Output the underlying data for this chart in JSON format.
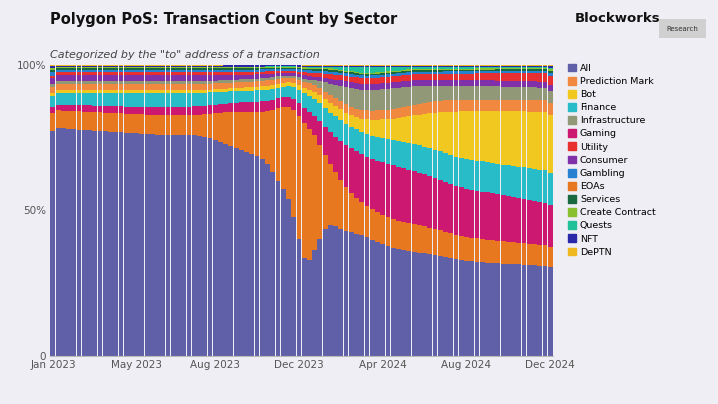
{
  "title": "Polygon PoS: Transaction Count by Sector",
  "subtitle": "Categorized by the \"to\" address of a transaction",
  "background_color": "#eeeef4",
  "plot_bg_color": "#eeeef4",
  "xtick_labels": [
    "Jan 2023",
    "May 2023",
    "Aug 2023",
    "Dec 2023",
    "Apr 2024",
    "Aug 2024",
    "Dec 2024"
  ],
  "xtick_positions": [
    0,
    16,
    31,
    47,
    63,
    79,
    95
  ],
  "n_bars": 96,
  "sectors": [
    {
      "name": "All",
      "color": "#6060a8"
    },
    {
      "name": "EOAs",
      "color": "#e87820"
    },
    {
      "name": "Gaming",
      "color": "#cc1870"
    },
    {
      "name": "Finance",
      "color": "#28bcc8"
    },
    {
      "name": "Bot",
      "color": "#f0c820"
    },
    {
      "name": "Prediction Mark",
      "color": "#f08840"
    },
    {
      "name": "Infrastructure",
      "color": "#909878"
    },
    {
      "name": "Consumer",
      "color": "#8030a8"
    },
    {
      "name": "Utility",
      "color": "#e83030"
    },
    {
      "name": "Gambling",
      "color": "#2880d0"
    },
    {
      "name": "Services",
      "color": "#186840"
    },
    {
      "name": "Create Contract",
      "color": "#88c030"
    },
    {
      "name": "Quests",
      "color": "#20c098"
    },
    {
      "name": "NFT",
      "color": "#2828a8"
    },
    {
      "name": "DePTN",
      "color": "#f0b820"
    }
  ],
  "legend_order": [
    "All",
    "Prediction Mark",
    "Bot",
    "Finance",
    "Infrastructure",
    "Gaming",
    "Utility",
    "Consumer",
    "Gambling",
    "EOAs",
    "Services",
    "Create Contract",
    "Quests",
    "NFT",
    "DePTN"
  ],
  "blockworks_text": "Blockworks",
  "research_text": "Research"
}
